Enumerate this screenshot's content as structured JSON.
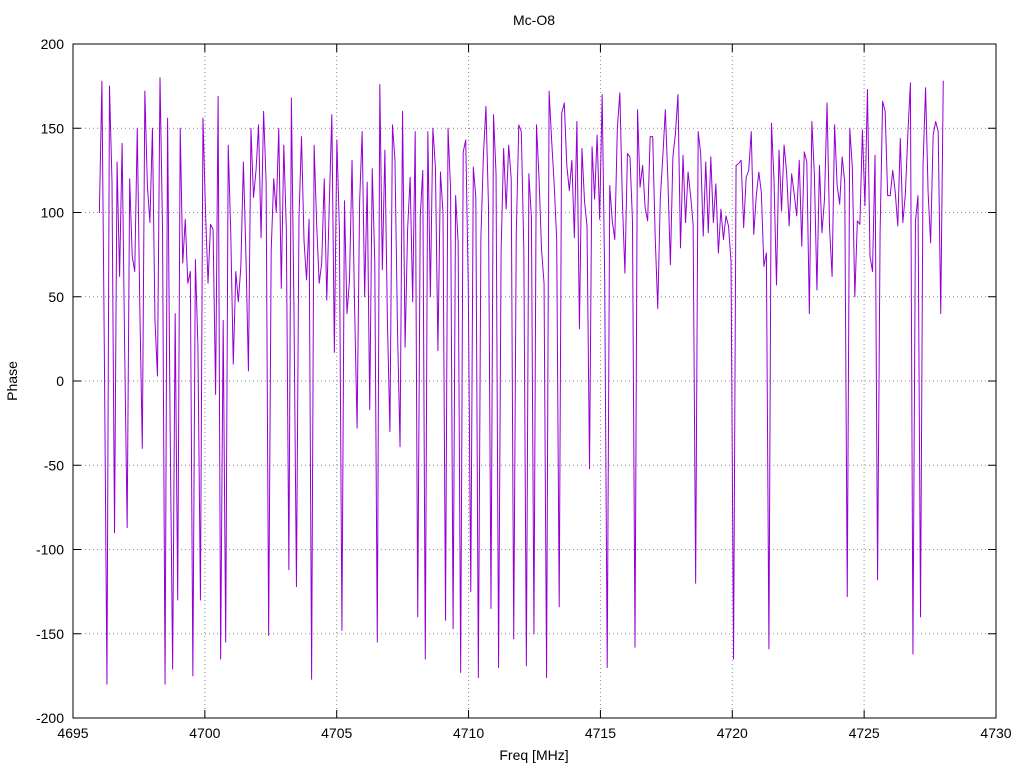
{
  "chart_data": {
    "type": "line",
    "title": "Mc-O8",
    "xlabel": "Freq [MHz]",
    "ylabel": "Phase",
    "xlim": [
      4695,
      4730
    ],
    "ylim": [
      -200,
      200
    ],
    "xticks": [
      4695,
      4700,
      4705,
      4710,
      4715,
      4720,
      4725,
      4730
    ],
    "yticks": [
      -200,
      -150,
      -100,
      -50,
      0,
      50,
      100,
      150,
      200
    ],
    "grid": true,
    "grid_style": "dotted",
    "legend": "none",
    "series_color": "#9400d3",
    "series": [
      {
        "x_start": 4696,
        "x_end": 4728,
        "values": [
          100,
          178,
          12,
          -180,
          175,
          118,
          -90,
          130,
          62,
          141,
          20,
          -87,
          120,
          74,
          65,
          150,
          44,
          -40,
          172,
          116,
          94,
          150,
          36,
          3,
          180,
          90,
          -180,
          156,
          -27,
          -171,
          40,
          -130,
          150,
          70,
          96,
          58,
          65,
          -175,
          72,
          21,
          -130,
          156,
          101,
          58,
          93,
          90,
          -8,
          169,
          -165,
          36,
          -155,
          140,
          88,
          10,
          65,
          47,
          68,
          130,
          75,
          6,
          150,
          109,
          125,
          152,
          85,
          160,
          118,
          -151,
          77,
          120,
          100,
          150,
          55,
          140,
          90,
          -112,
          168,
          45,
          -122,
          97,
          145,
          83,
          60,
          96,
          -177,
          140,
          93,
          58,
          70,
          120,
          48,
          105,
          158,
          17,
          143,
          90,
          -148,
          107,
          40,
          60,
          131,
          45,
          -28,
          106,
          148,
          50,
          118,
          -17,
          126,
          71,
          -155,
          176,
          66,
          137,
          36,
          -30,
          152,
          131,
          30,
          -39,
          160,
          20,
          90,
          121,
          47,
          148,
          -140,
          98,
          125,
          -165,
          148,
          50,
          150,
          127,
          18,
          124,
          100,
          -142,
          150,
          114,
          -147,
          110,
          82,
          -173,
          136,
          143,
          57,
          -125,
          127,
          109,
          -176,
          85,
          134,
          163,
          104,
          -135,
          158,
          123,
          -170,
          77,
          138,
          102,
          140,
          120,
          -153,
          87,
          152,
          148,
          77,
          -169,
          123,
          97,
          -150,
          152,
          121,
          78,
          58,
          -176,
          172,
          143,
          117,
          84,
          -134,
          159,
          165,
          128,
          113,
          131,
          85,
          154,
          31,
          138,
          107,
          92,
          -52,
          139,
          108,
          146,
          96,
          170,
          61,
          -170,
          116,
          95,
          84,
          150,
          171,
          107,
          64,
          135,
          133,
          95,
          -158,
          161,
          115,
          128,
          103,
          95,
          145,
          145,
          85,
          43,
          108,
          133,
          161,
          120,
          69,
          133,
          147,
          170,
          79,
          134,
          94,
          124,
          110,
          93,
          -120,
          148,
          135,
          86,
          130,
          88,
          133,
          94,
          117,
          76,
          102,
          84,
          98,
          92,
          71,
          -165,
          128,
          129,
          131,
          91,
          121,
          125,
          148,
          87,
          110,
          124,
          112,
          68,
          76,
          -159,
          153,
          120,
          57,
          137,
          101,
          140,
          124,
          92,
          123,
          111,
          98,
          131,
          80,
          136,
          130,
          40,
          154,
          122,
          54,
          128,
          88,
          108,
          165,
          91,
          62,
          152,
          116,
          105,
          133,
          118,
          -128,
          150,
          127,
          50,
          95,
          93,
          149,
          104,
          173,
          74,
          65,
          134,
          -118,
          88,
          166,
          160,
          110,
          110,
          125,
          112,
          92,
          144,
          94,
          111,
          147,
          177,
          -162,
          95,
          110,
          -140,
          128,
          174,
          112,
          82,
          146,
          154,
          148,
          40,
          178
        ]
      }
    ]
  }
}
